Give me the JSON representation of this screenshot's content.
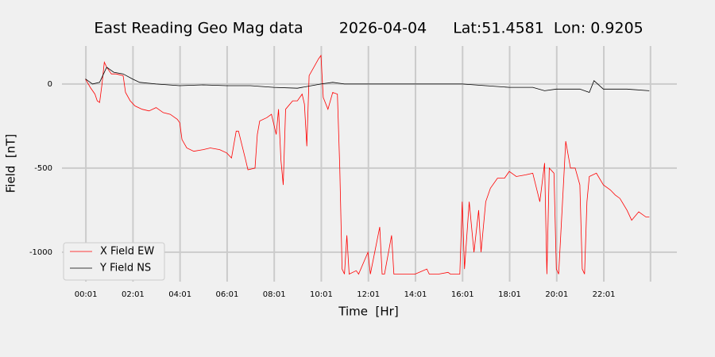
{
  "chart_data": {
    "type": "line",
    "title": "East Reading Geo Mag data",
    "subtitle": "2026-04-04",
    "annotation": "Lat:51.4581  Lon: 0.9205",
    "x_label": "Time  [Hr]",
    "y_label": "Field  [nT]",
    "xlim": [
      -1.0,
      25.12
    ],
    "ylim": [
      -1175,
      226
    ],
    "xticks": [
      {
        "value": 0.0167,
        "label": "00:01"
      },
      {
        "value": 2.0167,
        "label": "02:01"
      },
      {
        "value": 4.0167,
        "label": "04:01"
      },
      {
        "value": 6.0167,
        "label": "06:01"
      },
      {
        "value": 8.0167,
        "label": "08:01"
      },
      {
        "value": 10.0167,
        "label": "10:01"
      },
      {
        "value": 12.0167,
        "label": "12:01"
      },
      {
        "value": 14.0167,
        "label": "14:01"
      },
      {
        "value": 16.0167,
        "label": "16:01"
      },
      {
        "value": 18.0167,
        "label": "18:01"
      },
      {
        "value": 20.0167,
        "label": "20:01"
      },
      {
        "value": 22.0167,
        "label": "22:01"
      },
      {
        "value": 24.0,
        "label": ""
      }
    ],
    "yticks": [
      0,
      -500,
      -1000
    ],
    "grid": true,
    "legend": "lower left",
    "series": [
      {
        "name": "X Field EW",
        "color": "#ff0000",
        "x": [
          0.0,
          0.2,
          0.4,
          0.5,
          0.6,
          0.7,
          0.8,
          0.9,
          1.1,
          1.3,
          1.6,
          1.7,
          1.9,
          2.1,
          2.4,
          2.7,
          3.0,
          3.3,
          3.6,
          3.9,
          4.0,
          4.1,
          4.3,
          4.6,
          5.0,
          5.3,
          5.7,
          6.0,
          6.2,
          6.4,
          6.5,
          6.8,
          6.9,
          7.2,
          7.3,
          7.4,
          7.7,
          7.9,
          8.1,
          8.2,
          8.3,
          8.4,
          8.5,
          8.8,
          9.0,
          9.2,
          9.3,
          9.4,
          9.5,
          9.7,
          9.9,
          10.0,
          10.1,
          10.3,
          10.5,
          10.7,
          10.8,
          10.9,
          11.0,
          11.1,
          11.2,
          11.5,
          11.6,
          12.0,
          12.1,
          12.5,
          12.6,
          12.7,
          13.0,
          13.1,
          13.2,
          13.5,
          14.0,
          14.5,
          14.6,
          15.0,
          15.4,
          15.5,
          15.9,
          16.0,
          16.1,
          16.3,
          16.5,
          16.7,
          16.8,
          17.0,
          17.2,
          17.5,
          17.8,
          18.0,
          18.3,
          18.7,
          19.0,
          19.3,
          19.5,
          19.6,
          19.7,
          19.9,
          20.0,
          20.1,
          20.3,
          20.4,
          20.6,
          20.8,
          21.0,
          21.1,
          21.2,
          21.3,
          21.4,
          21.7,
          22.0,
          22.3,
          22.5,
          22.7,
          23.0,
          23.2,
          23.5,
          23.8,
          23.95
        ],
        "values": [
          30,
          -20,
          -60,
          -100,
          -110,
          0,
          130,
          100,
          60,
          60,
          50,
          -50,
          -100,
          -130,
          -150,
          -160,
          -140,
          -170,
          -180,
          -210,
          -230,
          -330,
          -380,
          -400,
          -390,
          -380,
          -390,
          -410,
          -440,
          -280,
          -280,
          -450,
          -510,
          -500,
          -300,
          -220,
          -200,
          -180,
          -300,
          -150,
          -450,
          -600,
          -150,
          -100,
          -100,
          -60,
          -120,
          -370,
          50,
          100,
          150,
          170,
          -80,
          -150,
          -50,
          -60,
          -500,
          -1100,
          -1130,
          -900,
          -1130,
          -1110,
          -1130,
          -1000,
          -1130,
          -850,
          -1130,
          -1130,
          -900,
          -1130,
          -1130,
          -1130,
          -1130,
          -1100,
          -1130,
          -1130,
          -1120,
          -1130,
          -1130,
          -700,
          -1100,
          -700,
          -1000,
          -750,
          -1000,
          -700,
          -620,
          -560,
          -560,
          -520,
          -550,
          -540,
          -530,
          -700,
          -470,
          -1130,
          -500,
          -530,
          -1100,
          -1130,
          -600,
          -340,
          -500,
          -500,
          -600,
          -1100,
          -1130,
          -700,
          -550,
          -530,
          -600,
          -630,
          -660,
          -680,
          -750,
          -810,
          -760,
          -790,
          -790
        ]
      },
      {
        "name": "Y Field NS",
        "color": "#000000",
        "x": [
          0.0,
          0.3,
          0.6,
          0.9,
          1.2,
          1.6,
          2.0,
          2.3,
          3.0,
          4.0,
          5.0,
          6.0,
          7.0,
          8.0,
          9.0,
          10.0,
          10.5,
          11.0,
          12.0,
          14.0,
          16.0,
          17.0,
          18.0,
          19.0,
          19.5,
          20.0,
          20.5,
          21.0,
          21.4,
          21.6,
          22.0,
          23.0,
          23.95
        ],
        "values": [
          30,
          0,
          10,
          100,
          70,
          60,
          30,
          10,
          0,
          -10,
          -5,
          -10,
          -10,
          -20,
          -25,
          0,
          10,
          0,
          0,
          0,
          0,
          -10,
          -20,
          -20,
          -40,
          -30,
          -30,
          -30,
          -50,
          20,
          -30,
          -30,
          -40
        ]
      }
    ]
  }
}
